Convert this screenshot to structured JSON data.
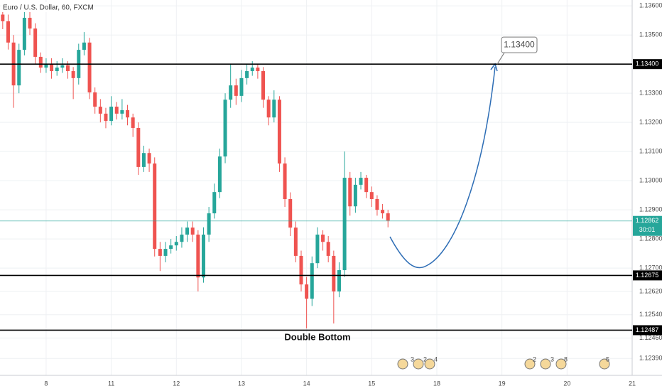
{
  "chart_data": {
    "type": "candlestick",
    "title": "Euro / U.S. Dollar, 60, FXCM",
    "x": [
      1,
      3,
      5,
      7,
      9,
      11,
      13,
      15,
      17,
      19,
      21,
      23,
      25,
      27,
      29,
      31,
      33,
      35,
      37,
      39,
      41,
      43,
      45,
      47,
      49,
      51,
      53,
      55,
      57,
      59,
      61,
      63,
      65,
      67,
      69,
      71,
      73,
      75,
      77,
      79,
      81,
      83,
      85,
      87,
      89,
      91,
      93,
      95,
      97,
      99,
      101,
      103,
      105,
      107,
      109,
      111,
      113,
      115,
      117,
      119,
      121,
      123,
      125,
      127,
      129,
      131,
      133,
      135,
      137,
      139,
      141,
      143
    ],
    "ohlc": [
      [
        1.1357,
        1.136,
        1.1352,
        1.13547
      ],
      [
        1.13547,
        1.1357,
        1.1345,
        1.13474
      ],
      [
        1.13474,
        1.135,
        1.1325,
        1.13327
      ],
      [
        1.13327,
        1.1347,
        1.133,
        1.13449
      ],
      [
        1.13449,
        1.1358,
        1.1343,
        1.13559
      ],
      [
        1.13559,
        1.1358,
        1.135,
        1.13522
      ],
      [
        1.13522,
        1.1354,
        1.134,
        1.13425
      ],
      [
        1.13425,
        1.1344,
        1.1337,
        1.13388
      ],
      [
        1.13388,
        1.1342,
        1.1337,
        1.134
      ],
      [
        1.134,
        1.1342,
        1.1335,
        1.13376
      ],
      [
        1.13376,
        1.1341,
        1.1336,
        1.13388
      ],
      [
        1.13388,
        1.1342,
        1.1337,
        1.13396
      ],
      [
        1.13396,
        1.1341,
        1.1335,
        1.13376
      ],
      [
        1.13376,
        1.1339,
        1.1328,
        1.13352
      ],
      [
        1.13352,
        1.1347,
        1.1333,
        1.13449
      ],
      [
        1.13449,
        1.1351,
        1.1343,
        1.13474
      ],
      [
        1.13474,
        1.1349,
        1.1328,
        1.13303
      ],
      [
        1.13303,
        1.1332,
        1.1323,
        1.13254
      ],
      [
        1.13254,
        1.1328,
        1.132,
        1.1323
      ],
      [
        1.1323,
        1.1325,
        1.1318,
        1.13205
      ],
      [
        1.13205,
        1.1329,
        1.1319,
        1.13254
      ],
      [
        1.13254,
        1.1327,
        1.1321,
        1.1323
      ],
      [
        1.1323,
        1.1328,
        1.1321,
        1.13242
      ],
      [
        1.13242,
        1.1326,
        1.1319,
        1.13217
      ],
      [
        1.13217,
        1.1323,
        1.1315,
        1.13181
      ],
      [
        1.13181,
        1.132,
        1.1302,
        1.13047
      ],
      [
        1.13047,
        1.1312,
        1.1303,
        1.13095
      ],
      [
        1.13095,
        1.1311,
        1.1303,
        1.13059
      ],
      [
        1.13059,
        1.1308,
        1.1274,
        1.12766
      ],
      [
        1.12766,
        1.1279,
        1.1269,
        1.12742
      ],
      [
        1.12742,
        1.1279,
        1.1272,
        1.12766
      ],
      [
        1.12766,
        1.128,
        1.1275,
        1.12778
      ],
      [
        1.12778,
        1.1281,
        1.1276,
        1.1279
      ],
      [
        1.1279,
        1.1284,
        1.1277,
        1.12815
      ],
      [
        1.12815,
        1.1286,
        1.1279,
        1.12839
      ],
      [
        1.12839,
        1.1286,
        1.1279,
        1.12815
      ],
      [
        1.12815,
        1.1283,
        1.1262,
        1.12668
      ],
      [
        1.12668,
        1.1284,
        1.1265,
        1.12815
      ],
      [
        1.12815,
        1.1291,
        1.1279,
        1.12888
      ],
      [
        1.12888,
        1.1299,
        1.1287,
        1.12961
      ],
      [
        1.12961,
        1.1311,
        1.1294,
        1.13083
      ],
      [
        1.13083,
        1.133,
        1.1306,
        1.13278
      ],
      [
        1.13278,
        1.134,
        1.1325,
        1.13327
      ],
      [
        1.13327,
        1.1335,
        1.1326,
        1.13291
      ],
      [
        1.13291,
        1.1338,
        1.1327,
        1.13352
      ],
      [
        1.13352,
        1.134,
        1.1333,
        1.13376
      ],
      [
        1.13376,
        1.1341,
        1.1336,
        1.13388
      ],
      [
        1.13388,
        1.134,
        1.1335,
        1.13376
      ],
      [
        1.13376,
        1.1339,
        1.1325,
        1.13278
      ],
      [
        1.13278,
        1.1329,
        1.1319,
        1.13217
      ],
      [
        1.13217,
        1.1331,
        1.132,
        1.13278
      ],
      [
        1.13278,
        1.1329,
        1.1303,
        1.13059
      ],
      [
        1.13059,
        1.1308,
        1.1291,
        1.12937
      ],
      [
        1.12937,
        1.1296,
        1.1281,
        1.12839
      ],
      [
        1.12839,
        1.1286,
        1.1272,
        1.12742
      ],
      [
        1.12742,
        1.1276,
        1.1262,
        1.12644
      ],
      [
        1.12644,
        1.1267,
        1.12493,
        1.12595
      ],
      [
        1.12595,
        1.1274,
        1.1257,
        1.12717
      ],
      [
        1.12717,
        1.1284,
        1.127,
        1.12815
      ],
      [
        1.12815,
        1.1283,
        1.1276,
        1.1279
      ],
      [
        1.1279,
        1.1281,
        1.1272,
        1.12742
      ],
      [
        1.12742,
        1.1276,
        1.1251,
        1.1262
      ],
      [
        1.1262,
        1.1272,
        1.126,
        1.12693
      ],
      [
        1.12693,
        1.131,
        1.1267,
        1.1301
      ],
      [
        1.1301,
        1.1303,
        1.1288,
        1.12912
      ],
      [
        1.12912,
        1.1301,
        1.1289,
        1.12986
      ],
      [
        1.12986,
        1.1303,
        1.1297,
        1.1301
      ],
      [
        1.1301,
        1.1302,
        1.1294,
        1.12961
      ],
      [
        1.12961,
        1.1298,
        1.1291,
        1.12937
      ],
      [
        1.12937,
        1.1295,
        1.1288,
        1.129
      ],
      [
        1.129,
        1.1292,
        1.1287,
        1.12888
      ],
      [
        1.12888,
        1.129,
        1.1284,
        1.12863
      ]
    ],
    "up_color": "#26a69a",
    "down_color": "#ef5350",
    "xlim": [
      0,
      233
    ],
    "xticks": [
      {
        "value": 17,
        "label": "8"
      },
      {
        "value": 41,
        "label": "11"
      },
      {
        "value": 65,
        "label": "12"
      },
      {
        "value": 89,
        "label": "13"
      },
      {
        "value": 113,
        "label": "14"
      },
      {
        "value": 137,
        "label": "15"
      },
      {
        "value": 161,
        "label": "18"
      },
      {
        "value": 185,
        "label": "19"
      },
      {
        "value": 209,
        "label": "20"
      },
      {
        "value": 233,
        "label": "21"
      }
    ],
    "ylim": [
      1.12332,
      1.1362
    ],
    "yticks": [
      {
        "value": 1.136,
        "label": "1.13600"
      },
      {
        "value": 1.135,
        "label": "1.13500"
      },
      {
        "value": 1.133,
        "label": "1.13300"
      },
      {
        "value": 1.132,
        "label": "1.13200"
      },
      {
        "value": 1.131,
        "label": "1.13100"
      },
      {
        "value": 1.13,
        "label": "1.13000"
      },
      {
        "value": 1.129,
        "label": "1.12900"
      },
      {
        "value": 1.128,
        "label": "1.12800"
      },
      {
        "value": 1.127,
        "label": "1.12700"
      },
      {
        "value": 1.1262,
        "label": "1.12620"
      },
      {
        "value": 1.1254,
        "label": "1.12540"
      },
      {
        "value": 1.1246,
        "label": "1.12460"
      },
      {
        "value": 1.1239,
        "label": "1.12390"
      }
    ],
    "grid": true,
    "levels": [
      {
        "value": 1.134,
        "label": "1.13400"
      },
      {
        "value": 1.12675,
        "label": "1.12675"
      },
      {
        "value": 1.12487,
        "label": "1.12487"
      }
    ],
    "last_price": {
      "value": 1.12862,
      "label": "1.12862",
      "countdown": "30:01"
    },
    "target": {
      "value": 1.134,
      "label": "1.13400"
    },
    "annotation": "Double Bottom",
    "events": [
      "3",
      "2",
      "4",
      "2",
      "3",
      "8",
      "5"
    ]
  }
}
